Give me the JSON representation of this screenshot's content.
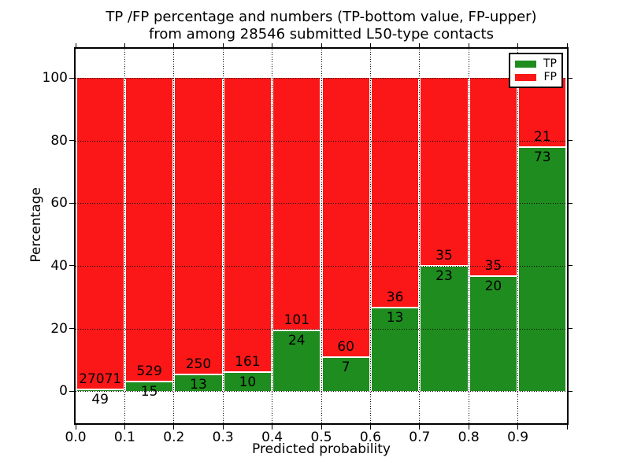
{
  "figure": {
    "title_line1": "TP /FP percentage and numbers (TP-bottom value, FP-upper)",
    "title_line2": "from among 28546 submitted L50-type contacts",
    "xlabel": "Predicted probability",
    "ylabel": "Percentage"
  },
  "chart_data": {
    "type": "bar",
    "stacked": true,
    "normalized_to_percent": 100,
    "title": "TP /FP percentage and numbers (TP-bottom value, FP-upper) from among 28546 submitted L50-type contacts",
    "xlabel": "Predicted probability",
    "ylabel": "Percentage",
    "total_submitted": 28546,
    "bins": [
      "0.0-0.1",
      "0.1-0.2",
      "0.2-0.3",
      "0.3-0.4",
      "0.4-0.5",
      "0.5-0.6",
      "0.6-0.7",
      "0.7-0.8",
      "0.8-0.9",
      "0.9-1.0"
    ],
    "series": [
      {
        "name": "TP",
        "color": "#1e8c1e",
        "counts": [
          49,
          15,
          13,
          10,
          24,
          7,
          13,
          23,
          20,
          73
        ]
      },
      {
        "name": "FP",
        "color": "#fb1717",
        "counts": [
          27071,
          529,
          250,
          161,
          101,
          60,
          36,
          35,
          35,
          21
        ]
      }
    ],
    "tp_percent": [
      0.18,
      2.76,
      4.94,
      5.85,
      19.2,
      10.45,
      26.53,
      39.66,
      36.36,
      77.66
    ],
    "xticks": [
      "0.0",
      "0.1",
      "0.2",
      "0.3",
      "0.4",
      "0.5",
      "0.6",
      "0.7",
      "0.8",
      "0.9"
    ],
    "yticks": [
      0,
      20,
      40,
      60,
      80,
      100
    ],
    "xlim": [
      0.0,
      1.0
    ],
    "ylim": [
      -10.3,
      109.4
    ],
    "grid": {
      "style": "dotted",
      "color": "#000000",
      "drawn_over_bars": true
    },
    "legend": {
      "position": "upper-right",
      "entries": [
        {
          "label": "TP",
          "color": "#1e8c1e"
        },
        {
          "label": "FP",
          "color": "#fb1717"
        }
      ]
    }
  }
}
